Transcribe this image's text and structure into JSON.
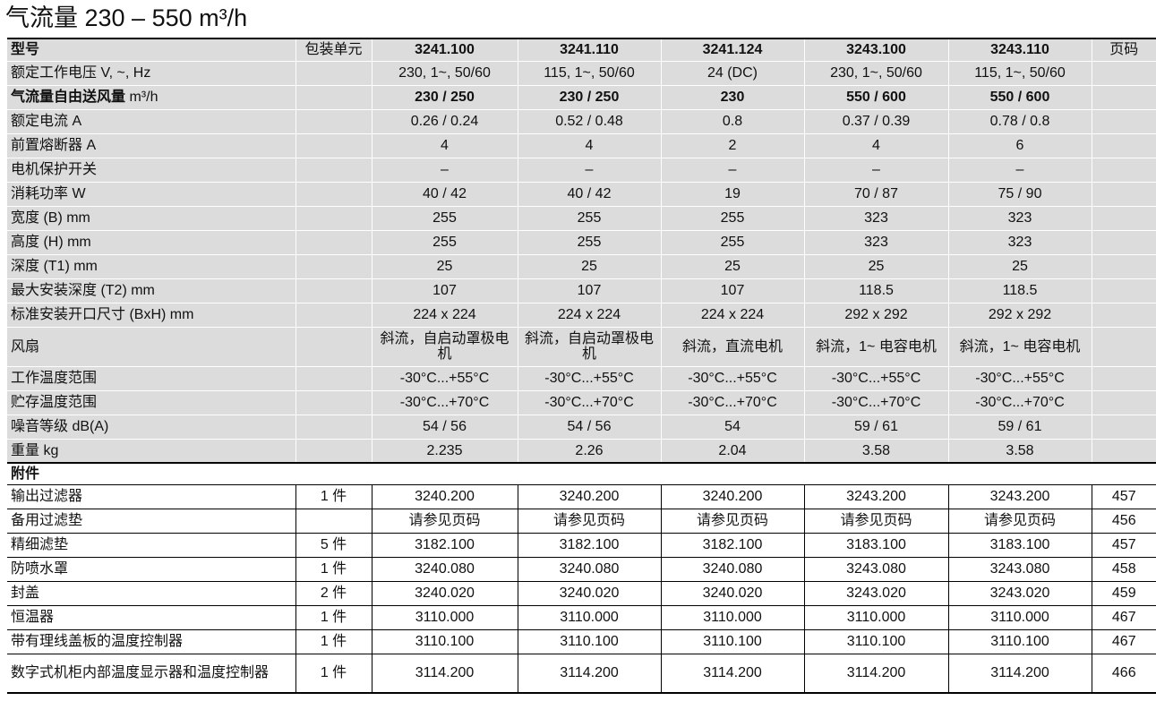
{
  "title": "气流量 230 – 550 m³/h",
  "header": {
    "label": "型号",
    "unit": "包装单元",
    "models": [
      "3241.100",
      "3241.110",
      "3241.124",
      "3243.100",
      "3243.110"
    ],
    "page": "页码"
  },
  "specs": [
    {
      "label": "额定工作电压 V, ~, Hz",
      "values": [
        "230, 1~, 50/60",
        "115, 1~, 50/60",
        "24 (DC)",
        "230, 1~, 50/60",
        "115, 1~, 50/60"
      ]
    },
    {
      "label": "气流量自由送风量",
      "suffix": "m³/h",
      "bold": true,
      "values": [
        "230 / 250",
        "230 / 250",
        "230",
        "550 / 600",
        "550 / 600"
      ]
    },
    {
      "label": "额定电流 A",
      "values": [
        "0.26 / 0.24",
        "0.52 / 0.48",
        "0.8",
        "0.37 / 0.39",
        "0.78 / 0.8"
      ]
    },
    {
      "label": "前置熔断器 A",
      "values": [
        "4",
        "4",
        "2",
        "4",
        "6"
      ]
    },
    {
      "label": "电机保护开关",
      "values": [
        "–",
        "–",
        "–",
        "–",
        "–"
      ]
    },
    {
      "label": "消耗功率 W",
      "values": [
        "40 / 42",
        "40 / 42",
        "19",
        "70 / 87",
        "75 / 90"
      ]
    },
    {
      "label": "宽度 (B) mm",
      "values": [
        "255",
        "255",
        "255",
        "323",
        "323"
      ]
    },
    {
      "label": "高度 (H) mm",
      "values": [
        "255",
        "255",
        "255",
        "323",
        "323"
      ]
    },
    {
      "label": "深度 (T1) mm",
      "values": [
        "25",
        "25",
        "25",
        "25",
        "25"
      ]
    },
    {
      "label": "最大安装深度 (T2) mm",
      "values": [
        "107",
        "107",
        "107",
        "118.5",
        "118.5"
      ]
    },
    {
      "label": "标准安装开口尺寸 (BxH) mm",
      "values": [
        "224 x 224",
        "224 x 224",
        "224 x 224",
        "292 x 292",
        "292 x 292"
      ]
    },
    {
      "label": "风扇",
      "tall": true,
      "values": [
        "斜流，自启动罩极电机",
        "斜流，自启动罩极电机",
        "斜流，直流电机",
        "斜流，1~ 电容电机",
        "斜流，1~ 电容电机"
      ]
    },
    {
      "label": "工作温度范围",
      "values": [
        "-30°C...+55°C",
        "-30°C...+55°C",
        "-30°C...+55°C",
        "-30°C...+55°C",
        "-30°C...+55°C"
      ]
    },
    {
      "label": "贮存温度范围",
      "values": [
        "-30°C...+70°C",
        "-30°C...+70°C",
        "-30°C...+70°C",
        "-30°C...+70°C",
        "-30°C...+70°C"
      ]
    },
    {
      "label": "噪音等级 dB(A)",
      "values": [
        "54 / 56",
        "54 / 56",
        "54",
        "59 / 61",
        "59 / 61"
      ]
    },
    {
      "label": "重量 kg",
      "values": [
        "2.235",
        "2.26",
        "2.04",
        "3.58",
        "3.58"
      ]
    }
  ],
  "accessories": {
    "title": "附件",
    "rows": [
      {
        "label": "输出过滤器",
        "unit": "1 件",
        "values": [
          "3240.200",
          "3240.200",
          "3240.200",
          "3243.200",
          "3243.200"
        ],
        "page": "457"
      },
      {
        "label": "备用过滤垫",
        "values": [
          "请参见页码",
          "请参见页码",
          "请参见页码",
          "请参见页码",
          "请参见页码"
        ],
        "page": "456"
      },
      {
        "label": "精细滤垫",
        "unit": "5 件",
        "values": [
          "3182.100",
          "3182.100",
          "3182.100",
          "3183.100",
          "3183.100"
        ],
        "page": "457"
      },
      {
        "label": "防喷水罩",
        "unit": "1 件",
        "values": [
          "3240.080",
          "3240.080",
          "3240.080",
          "3243.080",
          "3243.080"
        ],
        "page": "458"
      },
      {
        "label": "封盖",
        "unit": "2 件",
        "values": [
          "3240.020",
          "3240.020",
          "3240.020",
          "3243.020",
          "3243.020"
        ],
        "page": "459"
      },
      {
        "label": "恒温器",
        "unit": "1 件",
        "values": [
          "3110.000",
          "3110.000",
          "3110.000",
          "3110.000",
          "3110.000"
        ],
        "page": "467"
      },
      {
        "label": "带有理线盖板的温度控制器",
        "unit": "1 件",
        "values": [
          "3110.100",
          "3110.100",
          "3110.100",
          "3110.100",
          "3110.100"
        ],
        "page": "467"
      },
      {
        "label": "数字式机柜内部温度显示器和温度控制器",
        "unit": "1 件",
        "tall": true,
        "values": [
          "3114.200",
          "3114.200",
          "3114.200",
          "3114.200",
          "3114.200"
        ],
        "page": "466"
      }
    ]
  }
}
